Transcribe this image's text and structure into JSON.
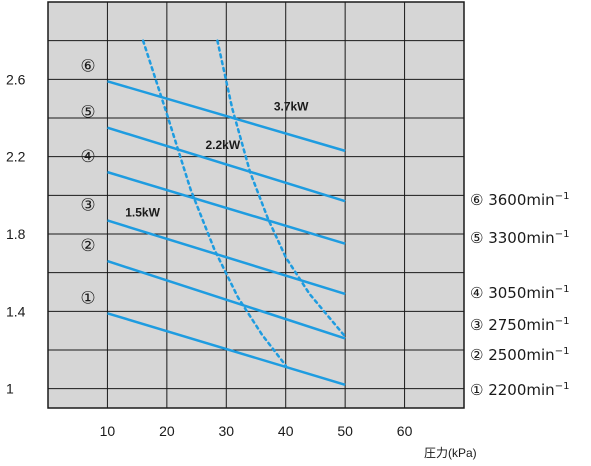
{
  "chart_data": {
    "type": "line",
    "title": "",
    "xlabel": "圧力(kPa)",
    "ylabel": "",
    "xlim": [
      0,
      70
    ],
    "ylim": [
      0.9,
      3.0
    ],
    "x_ticks": [
      "10",
      "20",
      "30",
      "40",
      "50",
      "60"
    ],
    "y_ticks": [
      "1",
      "1.4",
      "1.8",
      "2.2",
      "2.6"
    ],
    "grid": true,
    "background": "#d6d6d6",
    "series_color": "#1e9ce0",
    "series": [
      {
        "name": "① 2200min⁻¹",
        "marker": "①",
        "x": [
          10,
          50
        ],
        "y": [
          1.39,
          1.02
        ]
      },
      {
        "name": "② 2500min⁻¹",
        "marker": "②",
        "x": [
          10,
          50
        ],
        "y": [
          1.66,
          1.26
        ]
      },
      {
        "name": "③ 2750min⁻¹",
        "marker": "③",
        "x": [
          10,
          50
        ],
        "y": [
          1.87,
          1.49
        ]
      },
      {
        "name": "④ 3050min⁻¹",
        "marker": "④",
        "x": [
          10,
          50
        ],
        "y": [
          2.12,
          1.75
        ]
      },
      {
        "name": "⑤ 3300min⁻¹",
        "marker": "⑤",
        "x": [
          10,
          50
        ],
        "y": [
          2.35,
          1.97
        ]
      },
      {
        "name": "⑥ 3600min⁻¹",
        "marker": "⑥",
        "x": [
          10,
          50
        ],
        "y": [
          2.59,
          2.23
        ]
      }
    ],
    "power_curves": [
      {
        "label": "1.5kW",
        "x": [
          16,
          20,
          24,
          28,
          32,
          36,
          40
        ],
        "y": [
          2.8,
          2.42,
          2.03,
          1.72,
          1.47,
          1.28,
          1.12
        ]
      },
      {
        "label": "2.2kW",
        "x": [
          28.5,
          31,
          34,
          37,
          40,
          44,
          47,
          50
        ],
        "y": [
          2.8,
          2.45,
          2.12,
          1.88,
          1.68,
          1.49,
          1.38,
          1.27
        ]
      }
    ],
    "annotations": [
      {
        "text": "3.7kW",
        "x": 38,
        "y": 2.44
      },
      {
        "text": "2.2kW",
        "x": 26.5,
        "y": 2.24
      },
      {
        "text": "1.5kW",
        "x": 13,
        "y": 1.89
      }
    ],
    "legend": [
      {
        "text": "⑥ 3600min",
        "sup": "−1"
      },
      {
        "text": "⑤ 3300min",
        "sup": "−1"
      },
      {
        "text": "④ 3050min",
        "sup": "−1"
      },
      {
        "text": "③ 2750min",
        "sup": "−1"
      },
      {
        "text": "② 2500min",
        "sup": "−1"
      },
      {
        "text": "① 2200min",
        "sup": "−1"
      }
    ]
  }
}
